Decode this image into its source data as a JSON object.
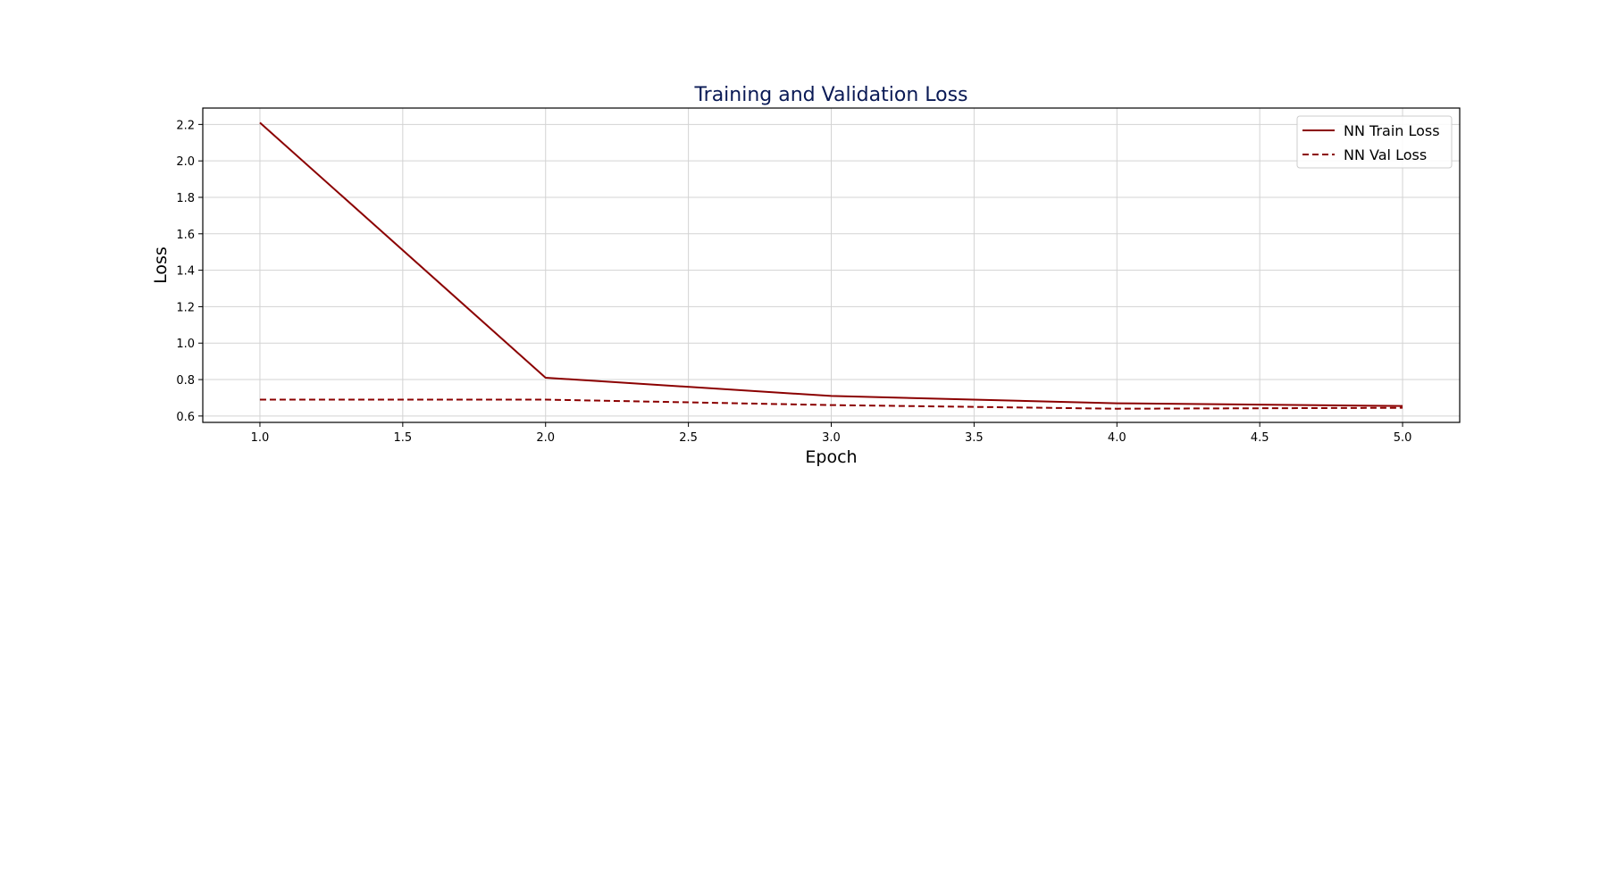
{
  "chart_data": {
    "type": "line",
    "title": "Training and Validation Loss",
    "xlabel": "Epoch",
    "ylabel": "Loss",
    "xlim": [
      0.8,
      5.2
    ],
    "ylim": [
      0.565,
      2.29
    ],
    "xticks": [
      "1.0",
      "1.5",
      "2.0",
      "2.5",
      "3.0",
      "3.5",
      "4.0",
      "4.5",
      "5.0"
    ],
    "yticks": [
      "0.6",
      "0.8",
      "1.0",
      "1.2",
      "1.4",
      "1.6",
      "1.8",
      "2.0",
      "2.2"
    ],
    "grid": true,
    "legend_position": "top-right",
    "title_color": "#0a1a55",
    "x": [
      1,
      2,
      3,
      4,
      5
    ],
    "series": [
      {
        "name": "NN Train Loss",
        "values": [
          2.21,
          0.81,
          0.71,
          0.67,
          0.655
        ],
        "color": "#8b0000",
        "style": "solid"
      },
      {
        "name": "NN Val Loss",
        "values": [
          0.69,
          0.69,
          0.66,
          0.64,
          0.645
        ],
        "color": "#8b0000",
        "style": "dashed"
      }
    ]
  }
}
